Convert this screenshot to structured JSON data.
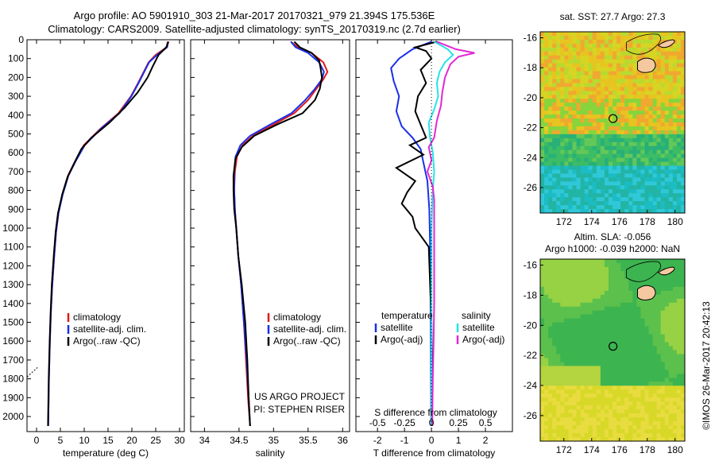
{
  "header": {
    "line1": "Argo profile: AO 5901910_303 21-Mar-2017 20170321_979 21.394S 175.536E",
    "line2": "Climatology: CARS2009. Satellite-adjusted climatology: synTS_20170319.nc (2.7d earlier)"
  },
  "colors": {
    "climatology": "#e0191b",
    "satellite": "#1b2fe8",
    "argo": "#000000",
    "satellite_cyan": "#27e3e8",
    "argo_magenta": "#e327d4"
  },
  "chart_data": [
    {
      "type": "line",
      "xlabel": "temperature (deg C)",
      "ylabel": "",
      "xlim": [
        -2,
        31
      ],
      "ylim": [
        2080,
        0
      ],
      "xticks": [
        "0",
        "5",
        "10",
        "15",
        "20",
        "25",
        "30"
      ],
      "yticks": [
        "0",
        "100",
        "200",
        "300",
        "400",
        "500",
        "600",
        "700",
        "800",
        "900",
        "1000",
        "1100",
        "1200",
        "1300",
        "1400",
        "1500",
        "1600",
        "1700",
        "1800",
        "1900",
        "2000"
      ],
      "legend": [
        "climatology",
        "satellite-adj. clim.",
        "Argo(..raw -QC)"
      ],
      "legend_position": "lower-right",
      "series": [
        {
          "name": "climatology",
          "color": "#e0191b",
          "points": [
            [
              27.5,
              10
            ],
            [
              27.3,
              40
            ],
            [
              25,
              80
            ],
            [
              23.5,
              120
            ],
            [
              22.5,
              170
            ],
            [
              21.3,
              230
            ],
            [
              19.8,
              300
            ],
            [
              17.2,
              390
            ],
            [
              13.5,
              470
            ],
            [
              9.9,
              560
            ],
            [
              8.2,
              640
            ],
            [
              6.6,
              720
            ],
            [
              5.4,
              820
            ],
            [
              4.6,
              920
            ],
            [
              4.1,
              1020
            ],
            [
              3.7,
              1150
            ],
            [
              3.3,
              1300
            ],
            [
              3.0,
              1450
            ],
            [
              2.8,
              1600
            ],
            [
              2.6,
              1800
            ],
            [
              2.45,
              2050
            ]
          ]
        },
        {
          "name": "satellite-adj. clim.",
          "color": "#1b2fe8",
          "points": [
            [
              27.6,
              10
            ],
            [
              27.4,
              40
            ],
            [
              25.3,
              80
            ],
            [
              23.6,
              120
            ],
            [
              22.6,
              170
            ],
            [
              21.4,
              230
            ],
            [
              19.9,
              300
            ],
            [
              17.4,
              390
            ],
            [
              13.6,
              470
            ],
            [
              10.1,
              560
            ],
            [
              8.3,
              640
            ],
            [
              6.7,
              720
            ],
            [
              5.5,
              820
            ],
            [
              4.6,
              920
            ],
            [
              4.1,
              1020
            ],
            [
              3.7,
              1150
            ],
            [
              3.3,
              1300
            ],
            [
              3.0,
              1450
            ],
            [
              2.8,
              1600
            ],
            [
              2.6,
              1800
            ],
            [
              2.45,
              2050
            ]
          ]
        },
        {
          "name": "Argo(..raw -QC)",
          "color": "#000000",
          "points": [
            [
              27.7,
              10
            ],
            [
              27.2,
              40
            ],
            [
              25.6,
              80
            ],
            [
              24.4,
              140
            ],
            [
              23.3,
              200
            ],
            [
              21.2,
              280
            ],
            [
              18.5,
              360
            ],
            [
              15.3,
              440
            ],
            [
              11.5,
              520
            ],
            [
              9.4,
              580
            ],
            [
              8.0,
              650
            ],
            [
              6.5,
              730
            ],
            [
              5.4,
              820
            ],
            [
              4.5,
              920
            ],
            [
              4.0,
              1020
            ],
            [
              3.6,
              1150
            ],
            [
              3.2,
              1300
            ],
            [
              2.95,
              1450
            ],
            [
              2.75,
              1600
            ],
            [
              2.55,
              1800
            ],
            [
              2.4,
              2050
            ]
          ]
        }
      ]
    },
    {
      "type": "line",
      "xlabel": "salinity",
      "xlim": [
        33.8,
        36.1
      ],
      "ylim": [
        2080,
        0
      ],
      "xticks": [
        "34",
        "34.5",
        "35",
        "35.5",
        "36"
      ],
      "legend": [
        "climatology",
        "satellite-adj. clim.",
        "Argo(..raw -QC)"
      ],
      "legend_position": "lower-right",
      "annotation": [
        "US ARGO PROJECT",
        "PI: STEPHEN RISER"
      ],
      "series": [
        {
          "name": "climatology",
          "color": "#e0191b",
          "points": [
            [
              35.25,
              10
            ],
            [
              35.35,
              40
            ],
            [
              35.55,
              70
            ],
            [
              35.72,
              120
            ],
            [
              35.78,
              170
            ],
            [
              35.72,
              210
            ],
            [
              35.62,
              260
            ],
            [
              35.5,
              320
            ],
            [
              35.3,
              390
            ],
            [
              35.0,
              450
            ],
            [
              34.7,
              510
            ],
            [
              34.55,
              560
            ],
            [
              34.47,
              620
            ],
            [
              34.44,
              700
            ],
            [
              34.43,
              800
            ],
            [
              34.44,
              900
            ],
            [
              34.46,
              1000
            ],
            [
              34.49,
              1150
            ],
            [
              34.53,
              1300
            ],
            [
              34.57,
              1500
            ],
            [
              34.6,
              1700
            ],
            [
              34.63,
              1900
            ],
            [
              34.66,
              2050
            ]
          ]
        },
        {
          "name": "satellite-adj. clim.",
          "color": "#1b2fe8",
          "points": [
            [
              35.25,
              10
            ],
            [
              35.32,
              40
            ],
            [
              35.5,
              70
            ],
            [
              35.66,
              120
            ],
            [
              35.73,
              170
            ],
            [
              35.7,
              210
            ],
            [
              35.6,
              260
            ],
            [
              35.46,
              320
            ],
            [
              35.26,
              390
            ],
            [
              34.95,
              450
            ],
            [
              34.66,
              510
            ],
            [
              34.52,
              560
            ],
            [
              34.45,
              620
            ],
            [
              34.43,
              700
            ],
            [
              34.43,
              800
            ],
            [
              34.44,
              900
            ],
            [
              34.46,
              1000
            ],
            [
              34.49,
              1150
            ],
            [
              34.53,
              1300
            ],
            [
              34.57,
              1500
            ],
            [
              34.61,
              1700
            ],
            [
              34.64,
              1900
            ],
            [
              34.66,
              2050
            ]
          ]
        },
        {
          "name": "Argo(..raw -QC)",
          "color": "#000000",
          "points": [
            [
              35.3,
              10
            ],
            [
              35.38,
              40
            ],
            [
              35.55,
              70
            ],
            [
              35.66,
              110
            ],
            [
              35.68,
              150
            ],
            [
              35.7,
              200
            ],
            [
              35.67,
              260
            ],
            [
              35.6,
              320
            ],
            [
              35.42,
              390
            ],
            [
              35.05,
              450
            ],
            [
              34.72,
              510
            ],
            [
              34.54,
              570
            ],
            [
              34.45,
              630
            ],
            [
              34.42,
              720
            ],
            [
              34.42,
              800
            ],
            [
              34.43,
              900
            ],
            [
              34.46,
              1000
            ],
            [
              34.49,
              1150
            ],
            [
              34.54,
              1300
            ],
            [
              34.59,
              1500
            ],
            [
              34.62,
              1700
            ],
            [
              34.64,
              1900
            ],
            [
              34.66,
              2050
            ]
          ]
        }
      ]
    },
    {
      "type": "line",
      "xlabel": "T difference from climatology",
      "xlabel_top": "S difference from climatology",
      "xlim": [
        -2.8,
        3.0
      ],
      "ylim": [
        2080,
        0
      ],
      "xticks": [
        "-2",
        "-1",
        "0",
        "1",
        "2"
      ],
      "xticks_top": [
        "-0.5",
        "-0.25",
        "0",
        "0.25",
        "0.5"
      ],
      "legend_left_title": "temperature",
      "legend_right_title": "salinity",
      "legend": [
        "satellite",
        "Argo(-adj)",
        "satellite",
        "Argo(-adj)"
      ],
      "legend_position": "lower",
      "series": [
        {
          "name": "T satellite",
          "color": "#1b2fe8",
          "points": [
            [
              0.0,
              10
            ],
            [
              -0.7,
              50
            ],
            [
              -1.2,
              100
            ],
            [
              -1.5,
              150
            ],
            [
              -1.4,
              220
            ],
            [
              -1.2,
              300
            ],
            [
              -1.3,
              380
            ],
            [
              -1.1,
              460
            ],
            [
              -0.7,
              520
            ],
            [
              -0.4,
              580
            ],
            [
              -0.3,
              650
            ],
            [
              -0.15,
              750
            ],
            [
              -0.08,
              900
            ],
            [
              -0.05,
              1100
            ],
            [
              -0.03,
              1400
            ],
            [
              -0.02,
              1700
            ],
            [
              -0.01,
              2050
            ]
          ]
        },
        {
          "name": "T Argo(-adj)",
          "color": "#000000",
          "points": [
            [
              0.2,
              10
            ],
            [
              -0.6,
              40
            ],
            [
              -0.2,
              60
            ],
            [
              0.0,
              100
            ],
            [
              -0.4,
              160
            ],
            [
              -0.2,
              230
            ],
            [
              -0.5,
              300
            ],
            [
              -0.6,
              380
            ],
            [
              -0.4,
              450
            ],
            [
              -0.2,
              520
            ],
            [
              -0.8,
              560
            ],
            [
              -0.3,
              610
            ],
            [
              -1.3,
              680
            ],
            [
              -0.6,
              750
            ],
            [
              -0.9,
              810
            ],
            [
              -1.1,
              870
            ],
            [
              -0.7,
              940
            ],
            [
              -0.6,
              1000
            ],
            [
              -0.1,
              1100
            ],
            [
              -0.05,
              1300
            ],
            [
              0.0,
              1500
            ],
            [
              0.02,
              1800
            ],
            [
              0.0,
              2050
            ]
          ]
        },
        {
          "name": "S satellite",
          "color": "#27e3e8",
          "points": [
            [
              0.1,
              10
            ],
            [
              0.6,
              50
            ],
            [
              0.8,
              80
            ],
            [
              0.5,
              120
            ],
            [
              0.3,
              170
            ],
            [
              0.2,
              230
            ],
            [
              0.25,
              300
            ],
            [
              0.1,
              370
            ],
            [
              -0.1,
              440
            ],
            [
              -0.05,
              520
            ],
            [
              0.05,
              600
            ],
            [
              0.1,
              700
            ],
            [
              0.05,
              800
            ],
            [
              0.02,
              900
            ],
            [
              0.0,
              1000
            ],
            [
              0.0,
              1200
            ],
            [
              0.0,
              1500
            ],
            [
              0.0,
              2050
            ]
          ]
        },
        {
          "name": "S Argo(-adj)",
          "color": "#e327d4",
          "points": [
            [
              0.2,
              10
            ],
            [
              0.9,
              50
            ],
            [
              1.6,
              70
            ],
            [
              1.0,
              90
            ],
            [
              0.7,
              130
            ],
            [
              0.5,
              200
            ],
            [
              0.4,
              280
            ],
            [
              0.35,
              350
            ],
            [
              0.2,
              430
            ],
            [
              0.1,
              520
            ],
            [
              -0.1,
              570
            ],
            [
              0.0,
              640
            ],
            [
              -0.15,
              700
            ],
            [
              0.05,
              780
            ],
            [
              0.1,
              850
            ],
            [
              0.1,
              950
            ],
            [
              0.1,
              1050
            ],
            [
              0.1,
              1200
            ],
            [
              0.1,
              1400
            ],
            [
              0.08,
              1600
            ],
            [
              0.05,
              1800
            ],
            [
              0.03,
              2050
            ]
          ]
        }
      ]
    },
    {
      "type": "heatmap",
      "title": "sat. SST: 27.7  Argo: 27.3",
      "xticks": [
        "172",
        "174",
        "176",
        "178",
        "180"
      ],
      "yticks": [
        "-16",
        "-18",
        "-20",
        "-22",
        "-24",
        "-26"
      ],
      "xlim": [
        170.3,
        180.7
      ],
      "ylim": [
        -27.7,
        -15.6
      ],
      "marker": [
        175.536,
        -21.394
      ]
    },
    {
      "type": "heatmap",
      "title": "Altim. SLA: -0.056",
      "subtitle": "Argo h1000: -0.039  h2000: NaN",
      "xticks": [
        "172",
        "174",
        "176",
        "178",
        "180"
      ],
      "yticks": [
        "-16",
        "-18",
        "-20",
        "-22",
        "-24",
        "-26"
      ],
      "xlim": [
        170.3,
        180.7
      ],
      "ylim": [
        -27.7,
        -15.6
      ],
      "marker": [
        175.536,
        -21.394
      ]
    }
  ],
  "watermark": "©IMOS 26-Mar-2017 20:42:13"
}
